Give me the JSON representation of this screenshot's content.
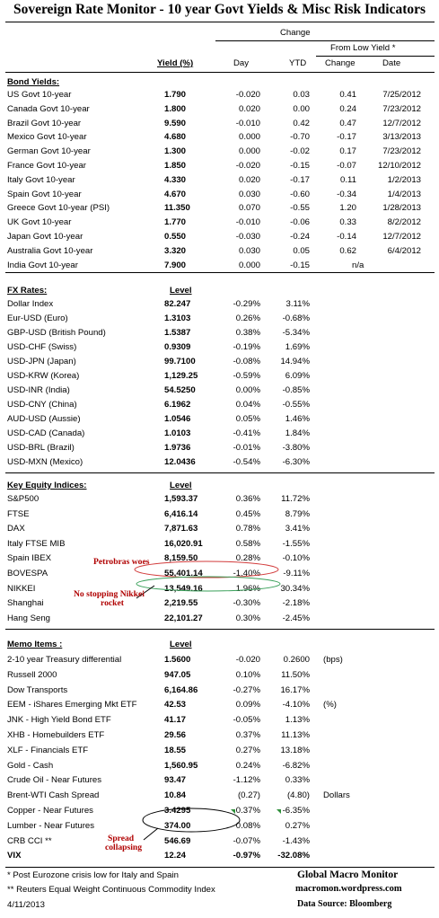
{
  "title": "Sovereign Rate Monitor - 10 year Govt Yields & Misc Risk Indicators",
  "header": {
    "change": "Change",
    "from_low": "From Low Yield  *",
    "yield_col": "Yield (%)",
    "day_col": "Day",
    "ytd_col": "YTD",
    "change_col": "Change",
    "date_col": "Date"
  },
  "bond": {
    "heading": "Bond Yields:",
    "rows": [
      {
        "name": "US Govt 10-year",
        "level": "1.790",
        "day": "-0.020",
        "ytd": "0.03",
        "chg": "0.41",
        "date": "7/25/2012"
      },
      {
        "name": "Canada Govt 10-year",
        "level": "1.800",
        "day": "0.020",
        "ytd": "0.00",
        "chg": "0.24",
        "date": "7/23/2012"
      },
      {
        "name": "Brazil Govt 10-year",
        "level": "9.590",
        "day": "-0.010",
        "ytd": "0.42",
        "chg": "0.47",
        "date": "12/7/2012"
      },
      {
        "name": "Mexico Govt 10-year",
        "level": "4.680",
        "day": "0.000",
        "ytd": "-0.70",
        "chg": "-0.17",
        "date": "3/13/2013"
      },
      {
        "name": "German Govt 10-year",
        "level": "1.300",
        "day": "0.000",
        "ytd": "-0.02",
        "chg": "0.17",
        "date": "7/23/2012"
      },
      {
        "name": "France Govt 10-year",
        "level": "1.850",
        "day": "-0.020",
        "ytd": "-0.15",
        "chg": "-0.07",
        "date": "12/10/2012"
      },
      {
        "name": "Italy Govt 10-year",
        "level": "4.330",
        "day": "0.020",
        "ytd": "-0.17",
        "chg": "0.11",
        "date": "1/2/2013"
      },
      {
        "name": "Spain Govt 10-year",
        "level": "4.670",
        "day": "0.030",
        "ytd": "-0.60",
        "chg": "-0.34",
        "date": "1/4/2013"
      },
      {
        "name": "Greece Govt 10-year (PSI)",
        "level": "11.350",
        "day": "0.070",
        "ytd": "-0.55",
        "chg": "1.20",
        "date": "1/28/2013"
      },
      {
        "name": "UK Govt 10-year",
        "level": "1.770",
        "day": "-0.010",
        "ytd": "-0.06",
        "chg": "0.33",
        "date": "8/2/2012"
      },
      {
        "name": "Japan Govt 10-year",
        "level": "0.550",
        "day": "-0.030",
        "ytd": "-0.24",
        "chg": "-0.14",
        "date": "12/7/2012"
      },
      {
        "name": "Australia Govt 10-year",
        "level": "3.320",
        "day": "0.030",
        "ytd": "0.05",
        "chg": "0.62",
        "date": "6/4/2012"
      },
      {
        "name": "India Govt 10-year",
        "level": "7.900",
        "day": "0.000",
        "ytd": "-0.15",
        "na": "n/a"
      }
    ]
  },
  "fx": {
    "heading": "FX Rates:",
    "level_label": "Level",
    "rows": [
      {
        "name": "Dollar Index",
        "level": "82.247",
        "day": "-0.29%",
        "ytd": "3.11%"
      },
      {
        "name": "Eur-USD (Euro)",
        "level": "1.3103",
        "day": "0.26%",
        "ytd": "-0.68%"
      },
      {
        "name": "GBP-USD (British Pound)",
        "level": "1.5387",
        "day": "0.38%",
        "ytd": "-5.34%"
      },
      {
        "name": "USD-CHF (Swiss)",
        "level": "0.9309",
        "day": "-0.19%",
        "ytd": "1.69%"
      },
      {
        "name": "USD-JPN (Japan)",
        "level": "99.7100",
        "day": "-0.08%",
        "ytd": "14.94%"
      },
      {
        "name": "USD-KRW (Korea)",
        "level": "1,129.25",
        "day": "-0.59%",
        "ytd": "6.09%"
      },
      {
        "name": "USD-INR (India)",
        "level": "54.5250",
        "day": "0.00%",
        "ytd": "-0.85%"
      },
      {
        "name": "USD-CNY (China)",
        "level": "6.1962",
        "day": "0.04%",
        "ytd": "-0.55%"
      },
      {
        "name": "AUD-USD (Aussie)",
        "level": "1.0546",
        "day": "0.05%",
        "ytd": "1.46%"
      },
      {
        "name": "USD-CAD (Canada)",
        "level": "1.0103",
        "day": "-0.41%",
        "ytd": "1.84%"
      },
      {
        "name": "USD-BRL (Brazil)",
        "level": "1.9736",
        "day": "-0.01%",
        "ytd": "-3.80%"
      },
      {
        "name": "USD-MXN  (Mexico)",
        "level": "12.0436",
        "day": "-0.54%",
        "ytd": "-6.30%"
      }
    ]
  },
  "equity": {
    "heading": "Key Equity Indices:",
    "level_label": "Level",
    "rows": [
      {
        "name": "S&P500",
        "level": "1,593.37",
        "day": "0.36%",
        "ytd": "11.72%"
      },
      {
        "name": "FTSE",
        "level": "6,416.14",
        "day": "0.45%",
        "ytd": "8.79%"
      },
      {
        "name": "DAX",
        "level": "7,871.63",
        "day": "0.78%",
        "ytd": "3.41%"
      },
      {
        "name": "Italy FTSE MIB",
        "level": "16,020.91",
        "day": "0.58%",
        "ytd": "-1.55%"
      },
      {
        "name": "Spain IBEX",
        "level": "8,159.50",
        "day": "0.28%",
        "ytd": "-0.10%"
      },
      {
        "name": "BOVESPA",
        "level": "55,401.14",
        "day": "-1.40%",
        "ytd": "-9.11%"
      },
      {
        "name": "NIKKEI",
        "level": "13,549.16",
        "day": "1.96%",
        "ytd": "30.34%"
      },
      {
        "name": "Shanghai",
        "level": "2,219.55",
        "day": "-0.30%",
        "ytd": "-2.18%"
      },
      {
        "name": "Hang Seng",
        "level": "22,101.27",
        "day": "0.30%",
        "ytd": "-2.45%"
      }
    ]
  },
  "memo": {
    "heading": "Memo Items :",
    "level_label": "Level",
    "rows": [
      {
        "name": "2-10 year Treasury differential",
        "level": "1.5600",
        "day": "-0.020",
        "ytd": "0.2600",
        "extra": "(bps)"
      },
      {
        "name": "Russell 2000",
        "level": "947.05",
        "day": "0.10%",
        "ytd": "11.50%"
      },
      {
        "name": "Dow Transports",
        "level": "6,164.86",
        "day": "-0.27%",
        "ytd": "16.17%"
      },
      {
        "name": "EEM - iShares Emerging Mkt ETF",
        "level": "42.53",
        "day": "0.09%",
        "ytd": "-4.10%",
        "extra": "(%)"
      },
      {
        "name": "JNK - High Yield Bond ETF",
        "level": "41.17",
        "day": "-0.05%",
        "ytd": "1.13%"
      },
      {
        "name": "XHB - Homebuilders ETF",
        "level": "29.56",
        "day": "0.37%",
        "ytd": "11.13%"
      },
      {
        "name": "XLF - Financials ETF",
        "level": "18.55",
        "day": "0.27%",
        "ytd": "13.18%"
      },
      {
        "name": "Gold - Cash",
        "level": "1,560.95",
        "day": "0.24%",
        "ytd": "-6.82%"
      },
      {
        "name": "Crude Oil - Near Futures",
        "level": "93.47",
        "day": "-1.12%",
        "ytd": "0.33%"
      },
      {
        "name": "Brent-WTI Cash Spread",
        "level": "10.84",
        "day": "(0.27)",
        "ytd": "(4.80)",
        "extra": "Dollars"
      },
      {
        "name": "Copper - Near Futures",
        "level": "3.4295",
        "day": "0.37%",
        "ytd": "-6.35%"
      },
      {
        "name": "Lumber - Near Futures",
        "level": "374.00",
        "day": "0.08%",
        "ytd": "0.27%"
      },
      {
        "name": "CRB CCI **",
        "level": "546.69",
        "day": "-0.07%",
        "ytd": "-1.43%"
      },
      {
        "name": "VIX",
        "level": "12.24",
        "day": "-0.97%",
        "ytd": "-32.08%"
      }
    ]
  },
  "annotations": {
    "petrobras": "Petrobras woes",
    "nikkei_1": "No stopping Nikkei",
    "nikkei_2": "rocket",
    "spread_1": "Spread",
    "spread_2": "collapsing",
    "color": "#b00000"
  },
  "footer": {
    "note1": "*  Post Eurozone crisis low for Italy and Spain",
    "note2": "** Reuters Equal Weight Continuous Commodity Index",
    "date": "4/11/2013",
    "brand": "Global Macro Monitor",
    "site": "macromon.wordpress.com",
    "source": "Data Source:  Bloomberg"
  }
}
